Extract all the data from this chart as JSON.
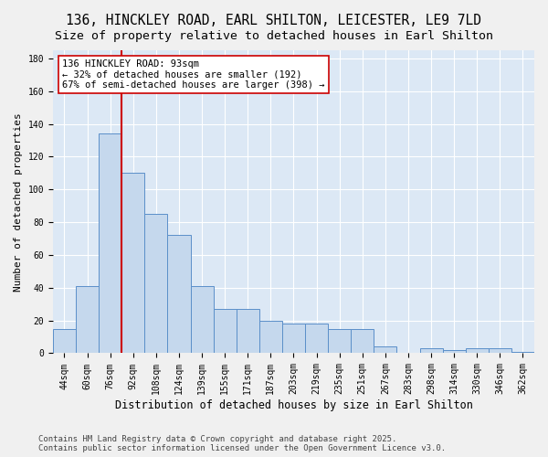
{
  "title_line1": "136, HINCKLEY ROAD, EARL SHILTON, LEICESTER, LE9 7LD",
  "title_line2": "Size of property relative to detached houses in Earl Shilton",
  "xlabel": "Distribution of detached houses by size in Earl Shilton",
  "ylabel": "Number of detached properties",
  "categories": [
    "44sqm",
    "60sqm",
    "76sqm",
    "92sqm",
    "108sqm",
    "124sqm",
    "139sqm",
    "155sqm",
    "171sqm",
    "187sqm",
    "203sqm",
    "219sqm",
    "235sqm",
    "251sqm",
    "267sqm",
    "283sqm",
    "298sqm",
    "314sqm",
    "330sqm",
    "346sqm",
    "362sqm"
  ],
  "values": [
    15,
    41,
    134,
    110,
    85,
    72,
    41,
    27,
    27,
    20,
    18,
    18,
    15,
    15,
    4,
    0,
    3,
    2,
    3,
    3,
    1
  ],
  "bar_color": "#c5d8ed",
  "bar_edge_color": "#5b8fc9",
  "vline_x_index": 2.5,
  "vline_color": "#cc0000",
  "annotation_text": "136 HINCKLEY ROAD: 93sqm\n← 32% of detached houses are smaller (192)\n67% of semi-detached houses are larger (398) →",
  "annotation_box_color": "#ffffff",
  "annotation_box_edge": "#cc0000",
  "ylim": [
    0,
    185
  ],
  "yticks": [
    0,
    20,
    40,
    60,
    80,
    100,
    120,
    140,
    160,
    180
  ],
  "bg_color": "#dce8f5",
  "fig_bg_color": "#f0f0f0",
  "footer": "Contains HM Land Registry data © Crown copyright and database right 2025.\nContains public sector information licensed under the Open Government Licence v3.0.",
  "title_fontsize": 10.5,
  "subtitle_fontsize": 9.5,
  "xlabel_fontsize": 8.5,
  "ylabel_fontsize": 8.0,
  "footer_fontsize": 6.5,
  "tick_fontsize": 7.0,
  "annotation_fontsize": 7.5
}
